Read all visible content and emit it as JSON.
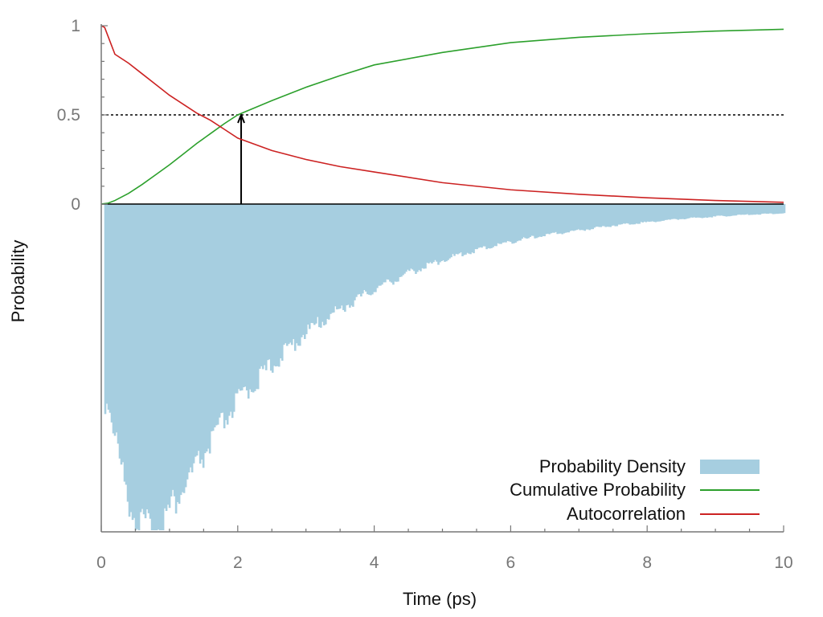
{
  "chart_data": {
    "type": "line",
    "xlabel": "Time (ps)",
    "ylabel": "Probability",
    "xlim": [
      0,
      10
    ],
    "ylim": [
      0,
      1
    ],
    "x_ticks": [
      0,
      2,
      4,
      6,
      8,
      10
    ],
    "x_tick_labels": [
      "0",
      "2",
      "4",
      "6",
      "8",
      "10"
    ],
    "y_ticks": [
      0,
      0.5,
      1
    ],
    "y_tick_labels": [
      "0",
      "0.5",
      "1"
    ],
    "grid": false,
    "legend_position": "bottom-right",
    "colors": {
      "density": "#a6cee0",
      "cumulative": "#2ca02c",
      "autocorrelation": "#cc2222",
      "axis": "#777777",
      "reference": "#000000"
    },
    "reference_line": {
      "y": 0.5,
      "style": "dotted"
    },
    "arrow": {
      "x": 2.05,
      "from_y": 0,
      "to_y": 0.5
    },
    "series": [
      {
        "name": "Probability Density",
        "kind": "histogram-mirrored",
        "x": [
          0.1,
          0.2,
          0.3,
          0.4,
          0.5,
          0.6,
          0.7,
          0.8,
          0.9,
          1.0,
          1.2,
          1.4,
          1.6,
          1.8,
          2.0,
          2.5,
          3.0,
          3.5,
          4.0,
          4.5,
          5.0,
          5.5,
          6.0,
          6.5,
          7.0,
          7.5,
          8.0,
          8.5,
          9.0,
          9.5,
          10.0
        ],
        "values": [
          0.61,
          0.72,
          0.83,
          0.91,
          0.96,
          0.99,
          1.0,
          0.99,
          0.97,
          0.93,
          0.87,
          0.8,
          0.73,
          0.66,
          0.6,
          0.49,
          0.39,
          0.32,
          0.26,
          0.21,
          0.17,
          0.14,
          0.115,
          0.095,
          0.08,
          0.065,
          0.055,
          0.045,
          0.038,
          0.032,
          0.028
        ]
      },
      {
        "name": "Cumulative Probability",
        "kind": "line",
        "x": [
          0,
          0.1,
          0.2,
          0.4,
          0.6,
          0.8,
          1.0,
          1.2,
          1.4,
          1.6,
          1.8,
          2.0,
          2.5,
          3.0,
          3.5,
          4.0,
          5.0,
          6.0,
          7.0,
          8.0,
          9.0,
          10.0
        ],
        "values": [
          0,
          0.005,
          0.02,
          0.06,
          0.11,
          0.165,
          0.22,
          0.28,
          0.34,
          0.395,
          0.45,
          0.5,
          0.58,
          0.655,
          0.72,
          0.78,
          0.85,
          0.905,
          0.935,
          0.955,
          0.97,
          0.98
        ]
      },
      {
        "name": "Autocorrelation",
        "kind": "line",
        "x": [
          0,
          0.05,
          0.1,
          0.15,
          0.2,
          0.4,
          0.6,
          0.8,
          1.0,
          1.2,
          1.4,
          1.6,
          1.8,
          2.0,
          2.5,
          3.0,
          3.5,
          4.0,
          5.0,
          6.0,
          7.0,
          8.0,
          9.0,
          10.0
        ],
        "values": [
          1.0,
          0.99,
          0.94,
          0.89,
          0.84,
          0.79,
          0.73,
          0.67,
          0.61,
          0.56,
          0.51,
          0.47,
          0.42,
          0.37,
          0.3,
          0.25,
          0.21,
          0.18,
          0.12,
          0.08,
          0.055,
          0.035,
          0.02,
          0.01
        ]
      }
    ]
  }
}
